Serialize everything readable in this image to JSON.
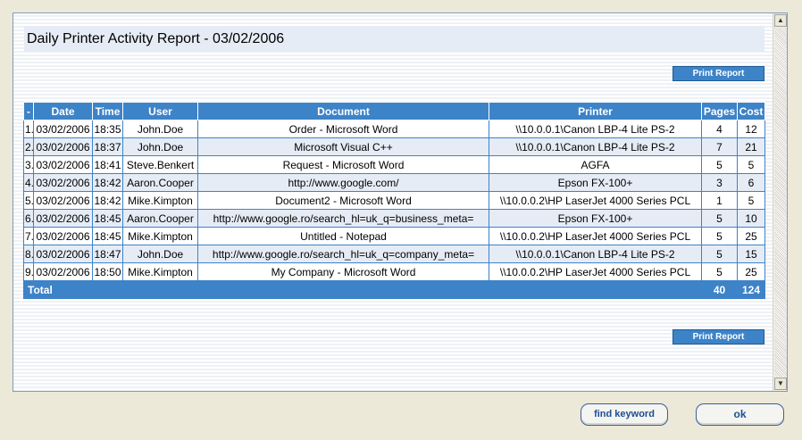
{
  "report": {
    "title": "Daily Printer Activity Report - 03/02/2006",
    "print_label": "Print Report",
    "columns": [
      "-",
      "Date",
      "Time",
      "User",
      "Document",
      "Printer",
      "Pages",
      "Cost"
    ],
    "rows": [
      {
        "n": "1.",
        "date": "03/02/2006",
        "time": "18:35",
        "user": "John.Doe",
        "document": "Order - Microsoft Word",
        "printer": "\\\\10.0.0.1\\Canon LBP-4 Lite PS-2",
        "pages": "4",
        "cost": "12"
      },
      {
        "n": "2.",
        "date": "03/02/2006",
        "time": "18:37",
        "user": "John.Doe",
        "document": "Microsoft Visual C++",
        "printer": "\\\\10.0.0.1\\Canon LBP-4 Lite PS-2",
        "pages": "7",
        "cost": "21"
      },
      {
        "n": "3.",
        "date": "03/02/2006",
        "time": "18:41",
        "user": "Steve.Benkert",
        "document": "Request - Microsoft Word",
        "printer": "AGFA",
        "pages": "5",
        "cost": "5"
      },
      {
        "n": "4.",
        "date": "03/02/2006",
        "time": "18:42",
        "user": "Aaron.Cooper",
        "document": "http://www.google.com/",
        "printer": "Epson FX-100+",
        "pages": "3",
        "cost": "6"
      },
      {
        "n": "5.",
        "date": "03/02/2006",
        "time": "18:42",
        "user": "Mike.Kimpton",
        "document": "Document2 - Microsoft Word",
        "printer": "\\\\10.0.0.2\\HP LaserJet 4000 Series PCL",
        "pages": "1",
        "cost": "5"
      },
      {
        "n": "6.",
        "date": "03/02/2006",
        "time": "18:45",
        "user": "Aaron.Cooper",
        "document": "http://www.google.ro/search_hl=uk_q=business_meta=",
        "printer": "Epson FX-100+",
        "pages": "5",
        "cost": "10"
      },
      {
        "n": "7.",
        "date": "03/02/2006",
        "time": "18:45",
        "user": "Mike.Kimpton",
        "document": "Untitled - Notepad",
        "printer": "\\\\10.0.0.2\\HP LaserJet 4000 Series PCL",
        "pages": "5",
        "cost": "25"
      },
      {
        "n": "8.",
        "date": "03/02/2006",
        "time": "18:47",
        "user": "John.Doe",
        "document": "http://www.google.ro/search_hl=uk_q=company_meta=",
        "printer": "\\\\10.0.0.1\\Canon LBP-4 Lite PS-2",
        "pages": "5",
        "cost": "15"
      },
      {
        "n": "9.",
        "date": "03/02/2006",
        "time": "18:50",
        "user": "Mike.Kimpton",
        "document": "My Company - Microsoft Word",
        "printer": "\\\\10.0.0.2\\HP LaserJet 4000 Series PCL",
        "pages": "5",
        "cost": "25"
      }
    ],
    "total": {
      "label": "Total",
      "pages": "40",
      "cost": "124"
    }
  },
  "buttons": {
    "find_keyword": "find keyword",
    "ok": "ok"
  },
  "icons": {
    "scroll_up": "scroll-up-arrow-icon",
    "scroll_down": "scroll-down-arrow-icon"
  },
  "colors": {
    "header_blue": "#3d83c8",
    "row_alt": "#e6ecf5"
  }
}
